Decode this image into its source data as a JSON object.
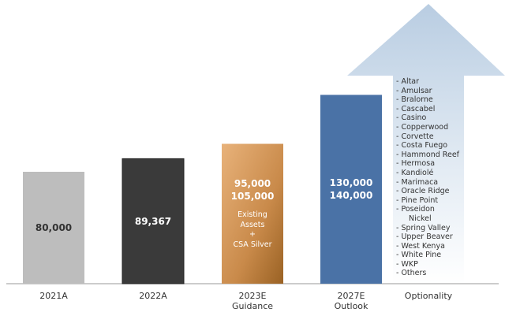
{
  "chart_data": {
    "type": "bar",
    "categories": [
      "2021A",
      "2022A",
      "2023E Guidance",
      "2027E Outlook"
    ],
    "bars": [
      {
        "values": [
          80000
        ],
        "value_labels": [
          "80,000"
        ],
        "color": "#bdbdbd",
        "label_color": "#333333"
      },
      {
        "values": [
          89367
        ],
        "value_labels": [
          "89,367"
        ],
        "color": "#3a3a3a",
        "label_color": "#ffffff"
      },
      {
        "values": [
          95000,
          105000
        ],
        "value_labels": [
          "95,000",
          "105,000"
        ],
        "color": "#c98a4a",
        "label_color": "#ffffff",
        "annotation": [
          "Existing",
          "Assets",
          "+",
          "CSA Silver"
        ]
      },
      {
        "values": [
          130000,
          140000
        ],
        "value_labels": [
          "130,000",
          "140,000"
        ],
        "color": "#4a72a6",
        "label_color": "#ffffff"
      }
    ],
    "optionality": {
      "label": "Optionality",
      "color": "#c9d8e8",
      "items": [
        "- Altar",
        "- Amulsar",
        "- Bralorne",
        "- Cascabel",
        "- Casino",
        "- Copperwood",
        "- Corvette",
        "- Costa Fuego",
        "- Hammond Reef",
        "- Hermosa",
        "- Kandiolé",
        "- Marimaca",
        "- Oracle Ridge",
        "- Pine Point",
        "- Poseidon",
        "Nickel",
        "- Spring Valley",
        "- Upper Beaver",
        "- West Kenya",
        "- White Pine",
        "- WKP",
        "- Others"
      ]
    }
  }
}
